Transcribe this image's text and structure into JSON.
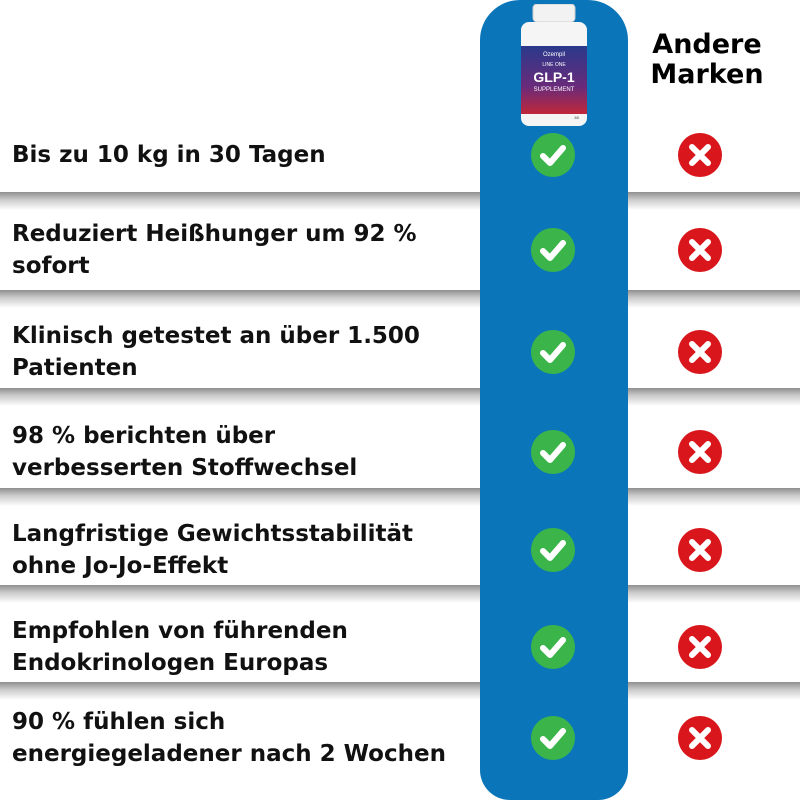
{
  "header": {
    "competitor_label": "Andere Marken"
  },
  "product": {
    "brand": "Ozempil",
    "line": "LINE ONE",
    "name": "GLP-1",
    "subtitle": "SUPPLEMENT",
    "count": "60"
  },
  "colors": {
    "column": "#0a76b9",
    "check": "#3bb54a",
    "cross": "#d9161c"
  },
  "rows": [
    {
      "label": "Bis zu 10 kg in 30 Tagen",
      "product": "check-icon",
      "other": "cross-icon"
    },
    {
      "label": "Reduziert Heißhunger um 92 % sofort",
      "product": "check-icon",
      "other": "cross-icon"
    },
    {
      "label": "Klinisch getestet an über 1.500 Patienten",
      "product": "check-icon",
      "other": "cross-icon"
    },
    {
      "label": "98 % berichten über verbesserten Stoffwechsel",
      "product": "check-icon",
      "other": "cross-icon"
    },
    {
      "label": "Langfristige Gewichtsstabilität ohne Jo-Jo-Effekt",
      "product": "check-icon",
      "other": "cross-icon"
    },
    {
      "label": "Empfohlen von führenden Endokrinologen Europas",
      "product": "check-icon",
      "other": "cross-icon"
    },
    {
      "label": "90 % fühlen sich energiegeladener nach 2 Wochen",
      "product": "check-icon",
      "other": "cross-icon"
    }
  ]
}
